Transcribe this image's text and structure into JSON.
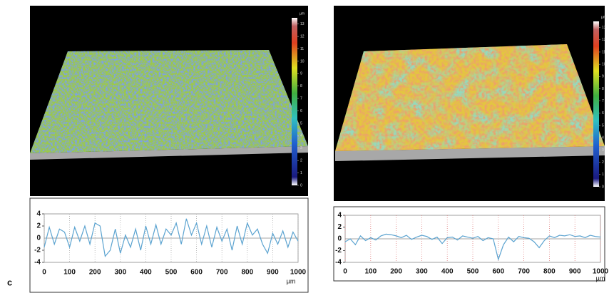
{
  "panel_label": "c",
  "chart_data": [
    {
      "type": "line",
      "color": "#5ba3d0",
      "x": [
        0,
        20,
        40,
        60,
        80,
        100,
        120,
        140,
        160,
        180,
        200,
        220,
        240,
        260,
        280,
        300,
        320,
        340,
        360,
        380,
        400,
        420,
        440,
        460,
        480,
        500,
        520,
        540,
        560,
        580,
        600,
        620,
        640,
        660,
        680,
        700,
        720,
        740,
        760,
        780,
        800,
        820,
        840,
        860,
        880,
        900,
        920,
        940,
        960,
        980,
        1000
      ],
      "values": [
        -1.5,
        1.8,
        -1,
        1.5,
        1,
        -1.5,
        1.8,
        -0.5,
        2,
        -1,
        2.5,
        2,
        -3,
        -2,
        1.5,
        -2.5,
        0.5,
        -1.5,
        1.5,
        -2,
        2,
        -1,
        2.2,
        -1,
        1.5,
        0.5,
        2.5,
        -1,
        3.2,
        0.5,
        2.5,
        -1,
        2,
        -1.5,
        1.8,
        -0.5,
        1.5,
        -2,
        2,
        -1,
        2.5,
        0.5,
        1.5,
        -1,
        -2.5,
        0.8,
        -1,
        1.2,
        -1.5,
        1,
        -0.5
      ],
      "xlim": [
        0,
        1000
      ],
      "ylim": [
        -4,
        4
      ],
      "xticks": [
        0,
        100,
        200,
        300,
        400,
        500,
        600,
        700,
        800,
        900,
        1000
      ],
      "yticks": [
        4,
        2,
        0,
        -2,
        -4
      ],
      "x_unit": "µm",
      "grid": true,
      "grid_color": "#aaaaaa",
      "colorbar": {
        "title": "µm",
        "lim": [
          0,
          13.5
        ],
        "ticks": [
          0,
          1,
          2,
          3,
          4,
          5,
          6,
          7,
          8,
          9,
          10,
          11,
          12,
          13
        ]
      }
    },
    {
      "type": "line",
      "color": "#5ba3d0",
      "x": [
        0,
        20,
        40,
        60,
        80,
        100,
        120,
        140,
        160,
        180,
        200,
        220,
        240,
        260,
        280,
        300,
        320,
        340,
        360,
        380,
        400,
        420,
        440,
        460,
        480,
        500,
        520,
        540,
        560,
        580,
        600,
        620,
        640,
        660,
        680,
        700,
        720,
        740,
        760,
        780,
        800,
        820,
        840,
        860,
        880,
        900,
        920,
        940,
        960,
        980,
        1000
      ],
      "values": [
        -0.5,
        0,
        -1,
        0.5,
        -0.3,
        0.2,
        -0.2,
        0.5,
        0.8,
        0.7,
        0.5,
        0.2,
        0.6,
        -0.1,
        0.3,
        0.6,
        0.4,
        -0.1,
        0.3,
        -0.8,
        0.2,
        0.3,
        -0.2,
        0.5,
        0.3,
        0.1,
        0.4,
        -0.3,
        0.2,
        0,
        -3.5,
        -1,
        0.3,
        -0.5,
        0.4,
        0.2,
        0.1,
        -0.5,
        -1.5,
        -0.3,
        0.5,
        0.2,
        0.6,
        0.5,
        0.7,
        0.4,
        0.5,
        0.2,
        0.6,
        0.4,
        0.3
      ],
      "xlim": [
        0,
        1000
      ],
      "ylim": [
        -4,
        4
      ],
      "xticks": [
        0,
        100,
        200,
        300,
        400,
        500,
        600,
        700,
        800,
        900,
        1000
      ],
      "yticks": [
        4,
        2,
        0,
        -2,
        -4
      ],
      "x_unit": "µm",
      "grid": true,
      "grid_color": "#e08080",
      "colorbar": {
        "title": "µm",
        "lim": [
          0,
          13.5
        ],
        "ticks": [
          0,
          1,
          2,
          3,
          4,
          5,
          6,
          7,
          8,
          9,
          10,
          11,
          12,
          13
        ]
      }
    }
  ]
}
